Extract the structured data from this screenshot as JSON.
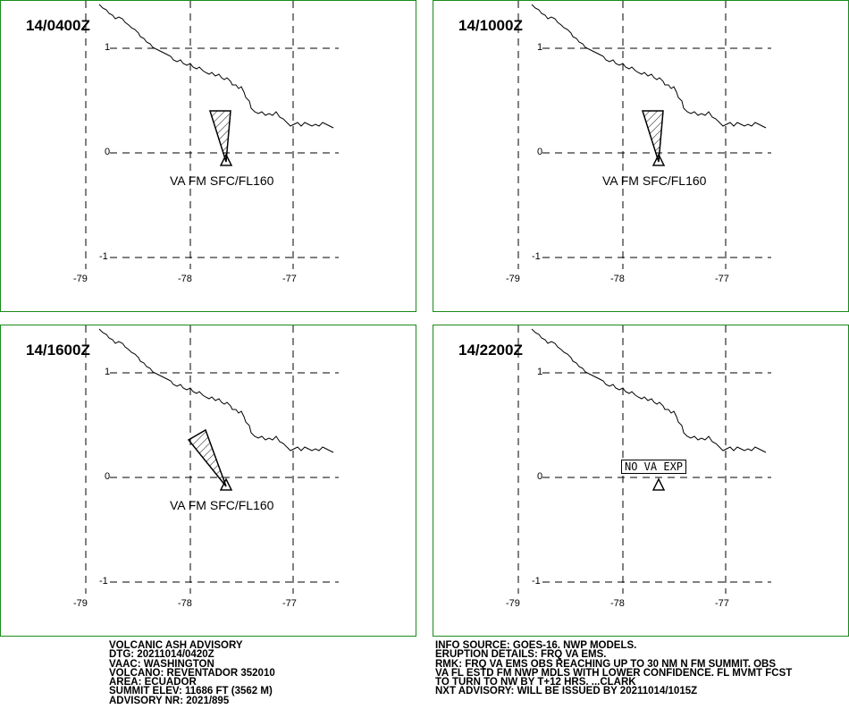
{
  "panels": [
    {
      "time": "14/0400Z",
      "label": "VA FM SFC/FL160",
      "plume": "south-narrow"
    },
    {
      "time": "14/1000Z",
      "label": "VA FM SFC/FL160",
      "plume": "south-narrow"
    },
    {
      "time": "14/1600Z",
      "label": "VA FM SFC/FL160",
      "plume": "northwest"
    },
    {
      "time": "14/2200Z",
      "label": "NO VA EXP",
      "plume": "none"
    }
  ],
  "axes": {
    "lat_labels": [
      "1",
      "0",
      "-1"
    ],
    "lon_labels": [
      "-79",
      "-78",
      "-77"
    ]
  },
  "footer_left": [
    "VOLCANIC ASH ADVISORY",
    "DTG: 20211014/0420Z",
    "VAAC: WASHINGTON",
    "VOLCANO: REVENTADOR 352010",
    "AREA: ECUADOR",
    "SUMMIT ELEV: 11686 FT (3562 M)",
    "ADVISORY NR: 2021/895"
  ],
  "footer_right": [
    "INFO SOURCE: GOES-16. NWP MODELS.",
    "ERUPTION DETAILS: FRQ VA EMS.",
    "RMK: FRQ VA EMS OBS REACHING UP TO 30 NM N FM SUMMIT. OBS",
    "VA FL ESTD FM NWP MDLS WITH LOWER CONFIDENCE. FL MVMT FCST",
    "TO TURN TO NW BY T+12 HRS. ...CLARK",
    "NXT ADVISORY: WILL BE ISSUED BY 20211014/1015Z"
  ],
  "colors": {
    "border": "#1a8a1a",
    "ink": "#000000"
  },
  "icons": {
    "volcano": "triangle-volcano-icon"
  }
}
